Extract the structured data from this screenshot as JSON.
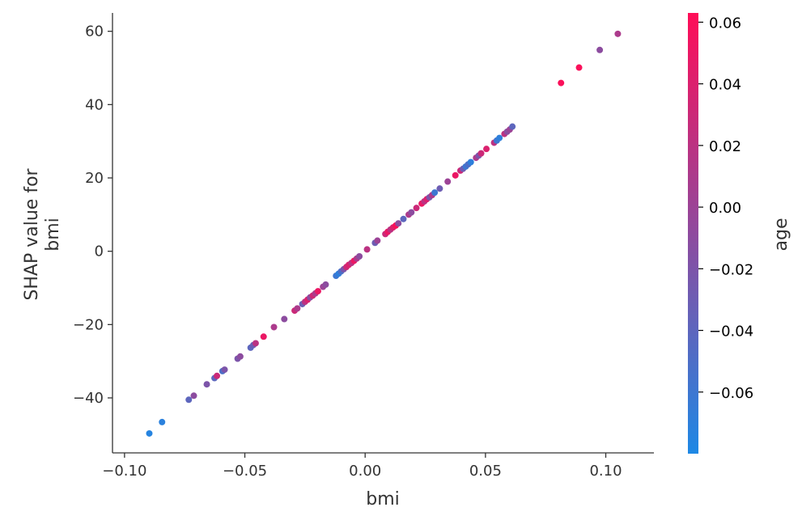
{
  "chart_data": {
    "type": "scatter",
    "title": "",
    "xlabel": "bmi",
    "ylabel_lines": [
      "SHAP value for",
      "bmi"
    ],
    "xlim": [
      -0.105,
      0.12
    ],
    "ylim": [
      -55,
      65
    ],
    "x_ticks": [
      -0.1,
      -0.05,
      0.0,
      0.05,
      0.1
    ],
    "x_tick_labels": [
      "−0.10",
      "−0.05",
      "0.00",
      "0.05",
      "0.10"
    ],
    "y_ticks": [
      -40,
      -20,
      0,
      20,
      40,
      60
    ],
    "y_tick_labels": [
      "−40",
      "−20",
      "0",
      "20",
      "40",
      "60"
    ],
    "grid": false,
    "colorbar": {
      "label": "age",
      "range": [
        -0.08,
        0.063
      ],
      "ticks": [
        -0.06,
        -0.04,
        -0.02,
        0.0,
        0.02,
        0.04,
        0.06
      ],
      "tick_labels": [
        "−0.06",
        "−0.04",
        "−0.02",
        "0.00",
        "0.02",
        "0.04",
        "0.06"
      ],
      "low_color": "#1e88e5",
      "high_color": "#ff0d57"
    },
    "points": [
      {
        "x": -0.0897,
        "y": -49.7,
        "c": -0.075
      },
      {
        "x": -0.0844,
        "y": -46.6,
        "c": -0.072
      },
      {
        "x": -0.0733,
        "y": -40.5,
        "c": -0.04
      },
      {
        "x": -0.0712,
        "y": -39.4,
        "c": -0.01
      },
      {
        "x": -0.0658,
        "y": -36.3,
        "c": -0.02
      },
      {
        "x": -0.0626,
        "y": -34.6,
        "c": -0.04
      },
      {
        "x": -0.0616,
        "y": -34.0,
        "c": 0.03
      },
      {
        "x": -0.0593,
        "y": -32.7,
        "c": -0.05
      },
      {
        "x": -0.0584,
        "y": -32.3,
        "c": -0.02
      },
      {
        "x": -0.053,
        "y": -29.3,
        "c": -0.02
      },
      {
        "x": -0.0519,
        "y": -28.7,
        "c": -0.01
      },
      {
        "x": -0.0476,
        "y": -26.3,
        "c": -0.04
      },
      {
        "x": -0.0465,
        "y": -25.6,
        "c": -0.03
      },
      {
        "x": -0.0455,
        "y": -25.1,
        "c": 0.02
      },
      {
        "x": -0.0422,
        "y": -23.3,
        "c": 0.05
      },
      {
        "x": -0.0379,
        "y": -20.7,
        "c": 0.01
      },
      {
        "x": -0.0336,
        "y": -18.5,
        "c": -0.01
      },
      {
        "x": -0.0293,
        "y": -16.2,
        "c": 0.03
      },
      {
        "x": -0.0282,
        "y": -15.6,
        "c": 0.01
      },
      {
        "x": -0.0261,
        "y": -14.4,
        "c": -0.03
      },
      {
        "x": -0.025,
        "y": -13.8,
        "c": 0.02
      },
      {
        "x": -0.0239,
        "y": -13.2,
        "c": 0.04
      },
      {
        "x": -0.0229,
        "y": -12.6,
        "c": -0.01
      },
      {
        "x": -0.0218,
        "y": -12.1,
        "c": 0.03
      },
      {
        "x": -0.0207,
        "y": -11.5,
        "c": 0.01
      },
      {
        "x": -0.0196,
        "y": -10.9,
        "c": 0.05
      },
      {
        "x": -0.0175,
        "y": -9.7,
        "c": 0.0
      },
      {
        "x": -0.0164,
        "y": -9.1,
        "c": -0.01
      },
      {
        "x": -0.0121,
        "y": -6.7,
        "c": -0.06
      },
      {
        "x": -0.011,
        "y": -6.1,
        "c": -0.07
      },
      {
        "x": -0.01,
        "y": -5.5,
        "c": -0.05
      },
      {
        "x": -0.0089,
        "y": -4.9,
        "c": -0.02
      },
      {
        "x": -0.0078,
        "y": -4.3,
        "c": 0.03
      },
      {
        "x": -0.0068,
        "y": -3.7,
        "c": 0.04
      },
      {
        "x": -0.0057,
        "y": -3.2,
        "c": 0.02
      },
      {
        "x": -0.0046,
        "y": -2.6,
        "c": 0.05
      },
      {
        "x": -0.0035,
        "y": -2.0,
        "c": 0.01
      },
      {
        "x": -0.0024,
        "y": -1.4,
        "c": -0.01
      },
      {
        "x": 0.0008,
        "y": 0.5,
        "c": 0.02
      },
      {
        "x": 0.0041,
        "y": 2.3,
        "c": -0.03
      },
      {
        "x": 0.0051,
        "y": 2.9,
        "c": 0.0
      },
      {
        "x": 0.0084,
        "y": 4.7,
        "c": 0.03
      },
      {
        "x": 0.0094,
        "y": 5.3,
        "c": 0.05
      },
      {
        "x": 0.0105,
        "y": 5.9,
        "c": 0.02
      },
      {
        "x": 0.0116,
        "y": 6.5,
        "c": 0.04
      },
      {
        "x": 0.0127,
        "y": 7.0,
        "c": 0.06
      },
      {
        "x": 0.0138,
        "y": 7.6,
        "c": -0.01
      },
      {
        "x": 0.0159,
        "y": 8.8,
        "c": -0.04
      },
      {
        "x": 0.0181,
        "y": 10.0,
        "c": 0.01
      },
      {
        "x": 0.0192,
        "y": 10.6,
        "c": -0.01
      },
      {
        "x": 0.0213,
        "y": 11.8,
        "c": 0.03
      },
      {
        "x": 0.0235,
        "y": 13.0,
        "c": 0.05
      },
      {
        "x": 0.0246,
        "y": 13.6,
        "c": 0.02
      },
      {
        "x": 0.0256,
        "y": 14.2,
        "c": 0.04
      },
      {
        "x": 0.0267,
        "y": 14.7,
        "c": -0.02
      },
      {
        "x": 0.0278,
        "y": 15.3,
        "c": 0.01
      },
      {
        "x": 0.0289,
        "y": 16.0,
        "c": -0.06
      },
      {
        "x": 0.031,
        "y": 17.1,
        "c": -0.03
      },
      {
        "x": 0.0343,
        "y": 19.0,
        "c": 0.0
      },
      {
        "x": 0.0375,
        "y": 20.7,
        "c": 0.05
      },
      {
        "x": 0.0396,
        "y": 22.0,
        "c": 0.03
      },
      {
        "x": 0.0407,
        "y": 22.5,
        "c": -0.03
      },
      {
        "x": 0.0418,
        "y": 23.1,
        "c": -0.06
      },
      {
        "x": 0.0428,
        "y": 23.7,
        "c": -0.05
      },
      {
        "x": 0.0439,
        "y": 24.3,
        "c": -0.07
      },
      {
        "x": 0.0461,
        "y": 25.5,
        "c": 0.01
      },
      {
        "x": 0.0472,
        "y": 26.1,
        "c": -0.02
      },
      {
        "x": 0.0482,
        "y": 26.7,
        "c": 0.03
      },
      {
        "x": 0.0504,
        "y": 27.9,
        "c": 0.04
      },
      {
        "x": 0.0536,
        "y": 29.6,
        "c": 0.02
      },
      {
        "x": 0.0547,
        "y": 30.2,
        "c": -0.06
      },
      {
        "x": 0.0558,
        "y": 30.9,
        "c": -0.07
      },
      {
        "x": 0.0579,
        "y": 32.0,
        "c": 0.02
      },
      {
        "x": 0.059,
        "y": 32.6,
        "c": -0.01
      },
      {
        "x": 0.0601,
        "y": 33.2,
        "c": 0.0
      },
      {
        "x": 0.0612,
        "y": 34.0,
        "c": -0.04
      },
      {
        "x": 0.0814,
        "y": 45.9,
        "c": 0.06
      },
      {
        "x": 0.0889,
        "y": 50.1,
        "c": 0.06
      },
      {
        "x": 0.0975,
        "y": 54.9,
        "c": -0.01
      },
      {
        "x": 0.105,
        "y": 59.3,
        "c": 0.01
      }
    ]
  }
}
